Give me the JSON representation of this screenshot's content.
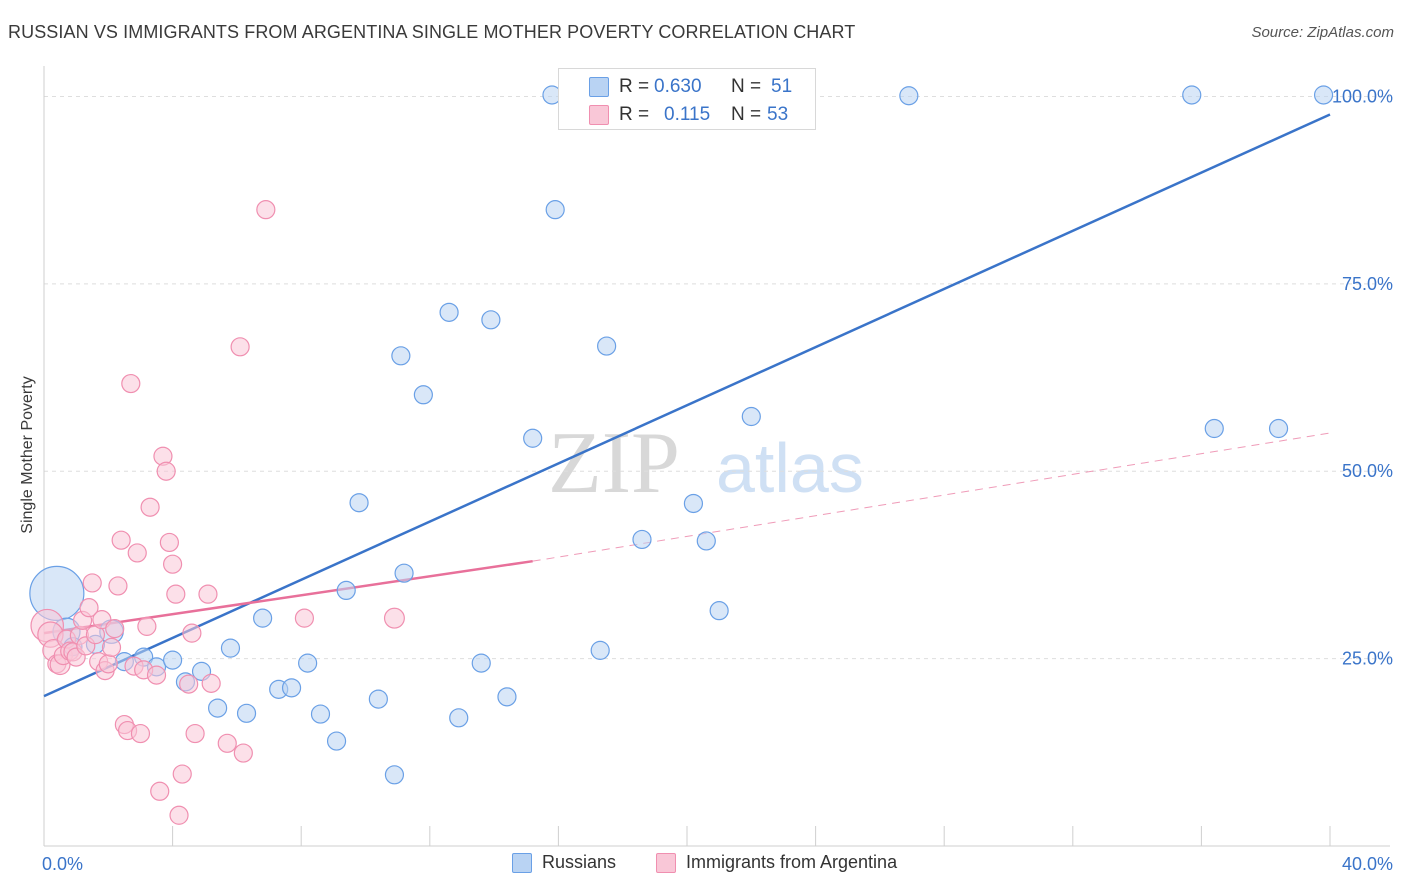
{
  "title": "RUSSIAN VS IMMIGRANTS FROM ARGENTINA SINGLE MOTHER POVERTY CORRELATION CHART",
  "source": "Source: ZipAtlas.com",
  "watermark": {
    "zip": "ZIP",
    "atlas": "atlas"
  },
  "stats": [
    {
      "r_label": "R =",
      "r_value": "0.630",
      "n_label": "N =",
      "n_value": "51",
      "color": "#6aa0e6",
      "fill": "#b9d3f3"
    },
    {
      "r_label": "R =",
      "r_value": "0.115",
      "n_label": "N =",
      "n_value": "53",
      "color": "#f08fb0",
      "fill": "#f9c7d7"
    }
  ],
  "legend": [
    {
      "label": "Russians",
      "color": "#6aa0e6",
      "fill": "#b9d3f3"
    },
    {
      "label": "Immigrants from Argentina",
      "color": "#f08fb0",
      "fill": "#f9c7d7"
    }
  ],
  "chart_data": {
    "type": "scatter",
    "title": "RUSSIAN VS IMMIGRANTS FROM ARGENTINA SINGLE MOTHER POVERTY CORRELATION CHART",
    "xlabel": "",
    "ylabel": "Single Mother Poverty",
    "xlim": [
      0,
      40
    ],
    "ylim": [
      0,
      105
    ],
    "x_tick_labels": [
      "0.0%",
      "40.0%"
    ],
    "y_ticks": [
      25,
      50,
      75,
      100
    ],
    "y_tick_labels": [
      "25.0%",
      "50.0%",
      "75.0%",
      "100.0%"
    ],
    "grid": true,
    "legend_position": "bottom",
    "series": [
      {
        "name": "Russians",
        "color": "#3a74c9",
        "fill": "#b9d3f3",
        "stroke": "#6aa0e6",
        "trend": {
          "x": [
            0,
            40
          ],
          "y": [
            20.0,
            97.6
          ],
          "dashed": false
        },
        "points": [
          {
            "x": 0.4,
            "y": 33.7,
            "s": 3
          },
          {
            "x": 0.7,
            "y": 28.6,
            "s": 1.5
          },
          {
            "x": 0.9,
            "y": 26.6,
            "s": 1
          },
          {
            "x": 1.6,
            "y": 26.9,
            "s": 1
          },
          {
            "x": 2.1,
            "y": 28.6,
            "s": 1.3
          },
          {
            "x": 2.5,
            "y": 24.6,
            "s": 1
          },
          {
            "x": 3.1,
            "y": 25.2,
            "s": 1
          },
          {
            "x": 3.5,
            "y": 23.9,
            "s": 1
          },
          {
            "x": 4.0,
            "y": 24.8,
            "s": 1
          },
          {
            "x": 4.4,
            "y": 21.9,
            "s": 1
          },
          {
            "x": 4.9,
            "y": 23.3,
            "s": 1
          },
          {
            "x": 5.4,
            "y": 18.4,
            "s": 1
          },
          {
            "x": 5.8,
            "y": 26.4,
            "s": 1
          },
          {
            "x": 6.3,
            "y": 17.7,
            "s": 1
          },
          {
            "x": 6.8,
            "y": 30.4,
            "s": 1
          },
          {
            "x": 7.3,
            "y": 20.9,
            "s": 1
          },
          {
            "x": 7.7,
            "y": 21.1,
            "s": 1
          },
          {
            "x": 8.2,
            "y": 24.4,
            "s": 1
          },
          {
            "x": 8.6,
            "y": 17.6,
            "s": 1
          },
          {
            "x": 9.1,
            "y": 14.0,
            "s": 1
          },
          {
            "x": 9.4,
            "y": 34.1,
            "s": 1
          },
          {
            "x": 9.8,
            "y": 45.8,
            "s": 1
          },
          {
            "x": 10.4,
            "y": 19.6,
            "s": 1
          },
          {
            "x": 10.9,
            "y": 9.5,
            "s": 1
          },
          {
            "x": 11.1,
            "y": 65.4,
            "s": 1
          },
          {
            "x": 11.2,
            "y": 36.4,
            "s": 1
          },
          {
            "x": 11.8,
            "y": 60.2,
            "s": 1
          },
          {
            "x": 12.6,
            "y": 71.2,
            "s": 1
          },
          {
            "x": 12.9,
            "y": 17.1,
            "s": 1
          },
          {
            "x": 13.6,
            "y": 24.4,
            "s": 1
          },
          {
            "x": 13.9,
            "y": 70.2,
            "s": 1
          },
          {
            "x": 14.4,
            "y": 19.9,
            "s": 1
          },
          {
            "x": 15.2,
            "y": 54.4,
            "s": 1
          },
          {
            "x": 15.8,
            "y": 100.2,
            "s": 1
          },
          {
            "x": 15.9,
            "y": 84.9,
            "s": 1
          },
          {
            "x": 16.5,
            "y": 100.2,
            "s": 1
          },
          {
            "x": 17.1,
            "y": 100.1,
            "s": 1.6
          },
          {
            "x": 17.3,
            "y": 26.1,
            "s": 1
          },
          {
            "x": 17.5,
            "y": 66.7,
            "s": 1
          },
          {
            "x": 18.0,
            "y": 100.2,
            "s": 1
          },
          {
            "x": 18.6,
            "y": 40.9,
            "s": 1
          },
          {
            "x": 20.2,
            "y": 45.7,
            "s": 1
          },
          {
            "x": 20.6,
            "y": 40.7,
            "s": 1
          },
          {
            "x": 21.0,
            "y": 31.4,
            "s": 1
          },
          {
            "x": 22.0,
            "y": 57.3,
            "s": 1
          },
          {
            "x": 22.3,
            "y": 100.1,
            "s": 1
          },
          {
            "x": 26.9,
            "y": 100.1,
            "s": 1
          },
          {
            "x": 35.7,
            "y": 100.2,
            "s": 1
          },
          {
            "x": 36.4,
            "y": 55.7,
            "s": 1
          },
          {
            "x": 38.4,
            "y": 55.7,
            "s": 1
          },
          {
            "x": 39.8,
            "y": 100.2,
            "s": 1
          }
        ]
      },
      {
        "name": "Immigrants from Argentina",
        "color": "#e8709a",
        "fill": "#f9c7d7",
        "stroke": "#f08fb0",
        "trend": {
          "x": [
            0,
            15.2
          ],
          "y": [
            28.4,
            38.0
          ],
          "dashed": false,
          "extension": {
            "x": [
              15.2,
              40
            ],
            "y": [
              38.0,
              55.1
            ],
            "dashed": true
          }
        },
        "points": [
          {
            "x": 0.1,
            "y": 29.4,
            "s": 1.8
          },
          {
            "x": 0.2,
            "y": 28.2,
            "s": 1.4
          },
          {
            "x": 0.3,
            "y": 26.1,
            "s": 1.2
          },
          {
            "x": 0.4,
            "y": 24.3,
            "s": 1
          },
          {
            "x": 0.5,
            "y": 24.2,
            "s": 1.1
          },
          {
            "x": 0.6,
            "y": 25.4,
            "s": 1
          },
          {
            "x": 0.7,
            "y": 27.6,
            "s": 1
          },
          {
            "x": 0.8,
            "y": 26.0,
            "s": 1
          },
          {
            "x": 0.9,
            "y": 25.9,
            "s": 1
          },
          {
            "x": 1.0,
            "y": 25.2,
            "s": 1
          },
          {
            "x": 1.1,
            "y": 28.1,
            "s": 1
          },
          {
            "x": 1.2,
            "y": 30.1,
            "s": 1
          },
          {
            "x": 1.3,
            "y": 26.7,
            "s": 1
          },
          {
            "x": 1.4,
            "y": 31.8,
            "s": 1
          },
          {
            "x": 1.5,
            "y": 35.1,
            "s": 1
          },
          {
            "x": 1.6,
            "y": 28.2,
            "s": 1
          },
          {
            "x": 1.7,
            "y": 24.6,
            "s": 1
          },
          {
            "x": 1.8,
            "y": 30.2,
            "s": 1
          },
          {
            "x": 1.9,
            "y": 23.4,
            "s": 1
          },
          {
            "x": 2.0,
            "y": 24.3,
            "s": 1
          },
          {
            "x": 2.1,
            "y": 26.5,
            "s": 1
          },
          {
            "x": 2.2,
            "y": 29.0,
            "s": 1
          },
          {
            "x": 2.3,
            "y": 34.7,
            "s": 1
          },
          {
            "x": 2.4,
            "y": 40.8,
            "s": 1
          },
          {
            "x": 2.5,
            "y": 16.2,
            "s": 1
          },
          {
            "x": 2.6,
            "y": 15.4,
            "s": 1
          },
          {
            "x": 2.7,
            "y": 61.7,
            "s": 1
          },
          {
            "x": 2.8,
            "y": 24.0,
            "s": 1
          },
          {
            "x": 2.9,
            "y": 39.1,
            "s": 1
          },
          {
            "x": 3.0,
            "y": 15.0,
            "s": 1
          },
          {
            "x": 3.1,
            "y": 23.5,
            "s": 1
          },
          {
            "x": 3.2,
            "y": 29.3,
            "s": 1
          },
          {
            "x": 3.3,
            "y": 45.2,
            "s": 1
          },
          {
            "x": 3.5,
            "y": 22.8,
            "s": 1
          },
          {
            "x": 3.6,
            "y": 7.3,
            "s": 1
          },
          {
            "x": 3.7,
            "y": 52.0,
            "s": 1
          },
          {
            "x": 3.8,
            "y": 50.0,
            "s": 1
          },
          {
            "x": 3.9,
            "y": 40.5,
            "s": 1
          },
          {
            "x": 4.0,
            "y": 37.6,
            "s": 1
          },
          {
            "x": 4.1,
            "y": 33.6,
            "s": 1
          },
          {
            "x": 4.2,
            "y": 4.1,
            "s": 1
          },
          {
            "x": 4.3,
            "y": 9.6,
            "s": 1
          },
          {
            "x": 4.5,
            "y": 21.6,
            "s": 1
          },
          {
            "x": 4.6,
            "y": 28.4,
            "s": 1
          },
          {
            "x": 4.7,
            "y": 15.0,
            "s": 1
          },
          {
            "x": 5.1,
            "y": 33.6,
            "s": 1
          },
          {
            "x": 5.2,
            "y": 21.7,
            "s": 1
          },
          {
            "x": 5.7,
            "y": 13.7,
            "s": 1
          },
          {
            "x": 6.1,
            "y": 66.6,
            "s": 1
          },
          {
            "x": 6.2,
            "y": 12.4,
            "s": 1
          },
          {
            "x": 6.9,
            "y": 84.9,
            "s": 1
          },
          {
            "x": 8.1,
            "y": 30.4,
            "s": 1
          },
          {
            "x": 10.9,
            "y": 30.4,
            "s": 1.1
          }
        ]
      }
    ]
  }
}
